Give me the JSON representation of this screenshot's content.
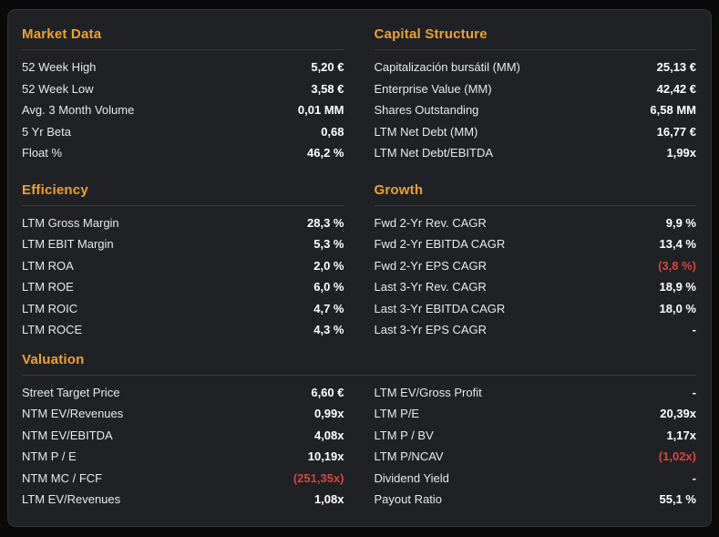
{
  "theme": {
    "page_background": "#0a0a0b",
    "card_background": "#1f2125",
    "card_border": "#313439",
    "divider": "#3a3d42",
    "section_header_color": "#efa02f",
    "label_color": "#e8e9eb",
    "value_color": "#ffffff",
    "negative_value_color": "#d9453c"
  },
  "card": {
    "sections": {
      "market_data": {
        "title": "Market Data",
        "rows": [
          {
            "label": "52 Week High",
            "value": "5,20 €"
          },
          {
            "label": "52 Week Low",
            "value": "3,58 €"
          },
          {
            "label": "Avg. 3 Month Volume",
            "value": "0,01 MM"
          },
          {
            "label": "5 Yr Beta",
            "value": "0,68"
          },
          {
            "label": "Float %",
            "value": "46,2 %"
          }
        ]
      },
      "capital_structure": {
        "title": "Capital Structure",
        "rows": [
          {
            "label": "Capitalización bursátil (MM)",
            "value": "25,13 €"
          },
          {
            "label": "Enterprise Value (MM)",
            "value": "42,42 €"
          },
          {
            "label": "Shares Outstanding",
            "value": "6,58 MM"
          },
          {
            "label": "LTM Net Debt (MM)",
            "value": "16,77 €"
          },
          {
            "label": "LTM Net Debt/EBITDA",
            "value": "1,99x"
          }
        ]
      },
      "efficiency": {
        "title": "Efficiency",
        "rows": [
          {
            "label": "LTM Gross Margin",
            "value": "28,3 %"
          },
          {
            "label": "LTM EBIT Margin",
            "value": "5,3 %"
          },
          {
            "label": "LTM ROA",
            "value": "2,0 %"
          },
          {
            "label": "LTM ROE",
            "value": "6,0 %"
          },
          {
            "label": "LTM ROIC",
            "value": "4,7 %"
          },
          {
            "label": "LTM ROCE",
            "value": "4,3 %"
          }
        ]
      },
      "growth": {
        "title": "Growth",
        "rows": [
          {
            "label": "Fwd 2-Yr Rev. CAGR",
            "value": "9,9 %"
          },
          {
            "label": "Fwd 2-Yr EBITDA CAGR",
            "value": "13,4 %"
          },
          {
            "label": "Fwd 2-Yr EPS CAGR",
            "value": "(3,8 %)"
          },
          {
            "label": "Last 3-Yr Rev. CAGR",
            "value": "18,9 %"
          },
          {
            "label": "Last 3-Yr EBITDA CAGR",
            "value": "18,0 %"
          },
          {
            "label": "Last 3-Yr EPS CAGR",
            "value": "-"
          }
        ]
      },
      "valuation": {
        "title": "Valuation",
        "left_rows": [
          {
            "label": "Street Target Price",
            "value": "6,60 €"
          },
          {
            "label": "NTM EV/Revenues",
            "value": "0,99x"
          },
          {
            "label": "NTM EV/EBITDA",
            "value": "4,08x"
          },
          {
            "label": "NTM P / E",
            "value": "10,19x"
          },
          {
            "label": "NTM MC / FCF",
            "value": "(251,35x)"
          },
          {
            "label": "LTM EV/Revenues",
            "value": "1,08x"
          }
        ],
        "right_rows": [
          {
            "label": "LTM EV/Gross Profit",
            "value": "-"
          },
          {
            "label": "LTM P/E",
            "value": "20,39x"
          },
          {
            "label": "LTM P / BV",
            "value": "1,17x"
          },
          {
            "label": "LTM P/NCAV",
            "value": "(1,02x)"
          },
          {
            "label": "Dividend Yield",
            "value": "-"
          },
          {
            "label": "Payout Ratio",
            "value": "55,1 %"
          }
        ]
      }
    }
  }
}
